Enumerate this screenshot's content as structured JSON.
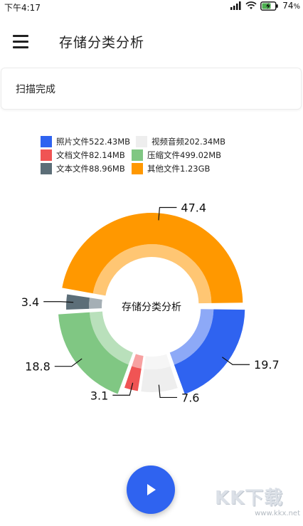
{
  "status_bar": {
    "time": "下午4:17",
    "battery_percent": "74",
    "battery_suffix": "%",
    "icons": [
      "signal-icon",
      "wifi-icon",
      "battery-charging-icon"
    ]
  },
  "app_bar": {
    "title": "存储分类分析",
    "menu_icon": "hamburger-menu-icon"
  },
  "scan_status": {
    "text": "扫描完成"
  },
  "legend": [
    {
      "label": "照片文件522.43MB",
      "color": "#2f63f0"
    },
    {
      "label": "视频音频202.34MB",
      "color": "#eeeeee"
    },
    {
      "label": "文档文件82.14MB",
      "color": "#f05454"
    },
    {
      "label": "压缩文件499.02MB",
      "color": "#80c783"
    },
    {
      "label": "文本文件88.96MB",
      "color": "#5c6e78"
    },
    {
      "label": "其他文件1.23GB",
      "color": "#ff9800"
    }
  ],
  "chart_data": {
    "type": "pie",
    "center_text": "存储分类分析",
    "slices": [
      {
        "name": "照片文件",
        "value": 19.7,
        "color": "#2f63f0"
      },
      {
        "name": "视频音频",
        "value": 7.6,
        "color": "#eeeeee"
      },
      {
        "name": "文档文件",
        "value": 3.1,
        "color": "#f05454"
      },
      {
        "name": "压缩文件",
        "value": 18.8,
        "color": "#80c783"
      },
      {
        "name": "文本文件",
        "value": 3.4,
        "color": "#5c6e78"
      },
      {
        "name": "其他文件",
        "value": 47.4,
        "color": "#ff9800"
      }
    ]
  },
  "fab": {
    "icon": "play-icon"
  },
  "watermark": {
    "logo": "KK下载",
    "url": "www.kkx.net"
  }
}
